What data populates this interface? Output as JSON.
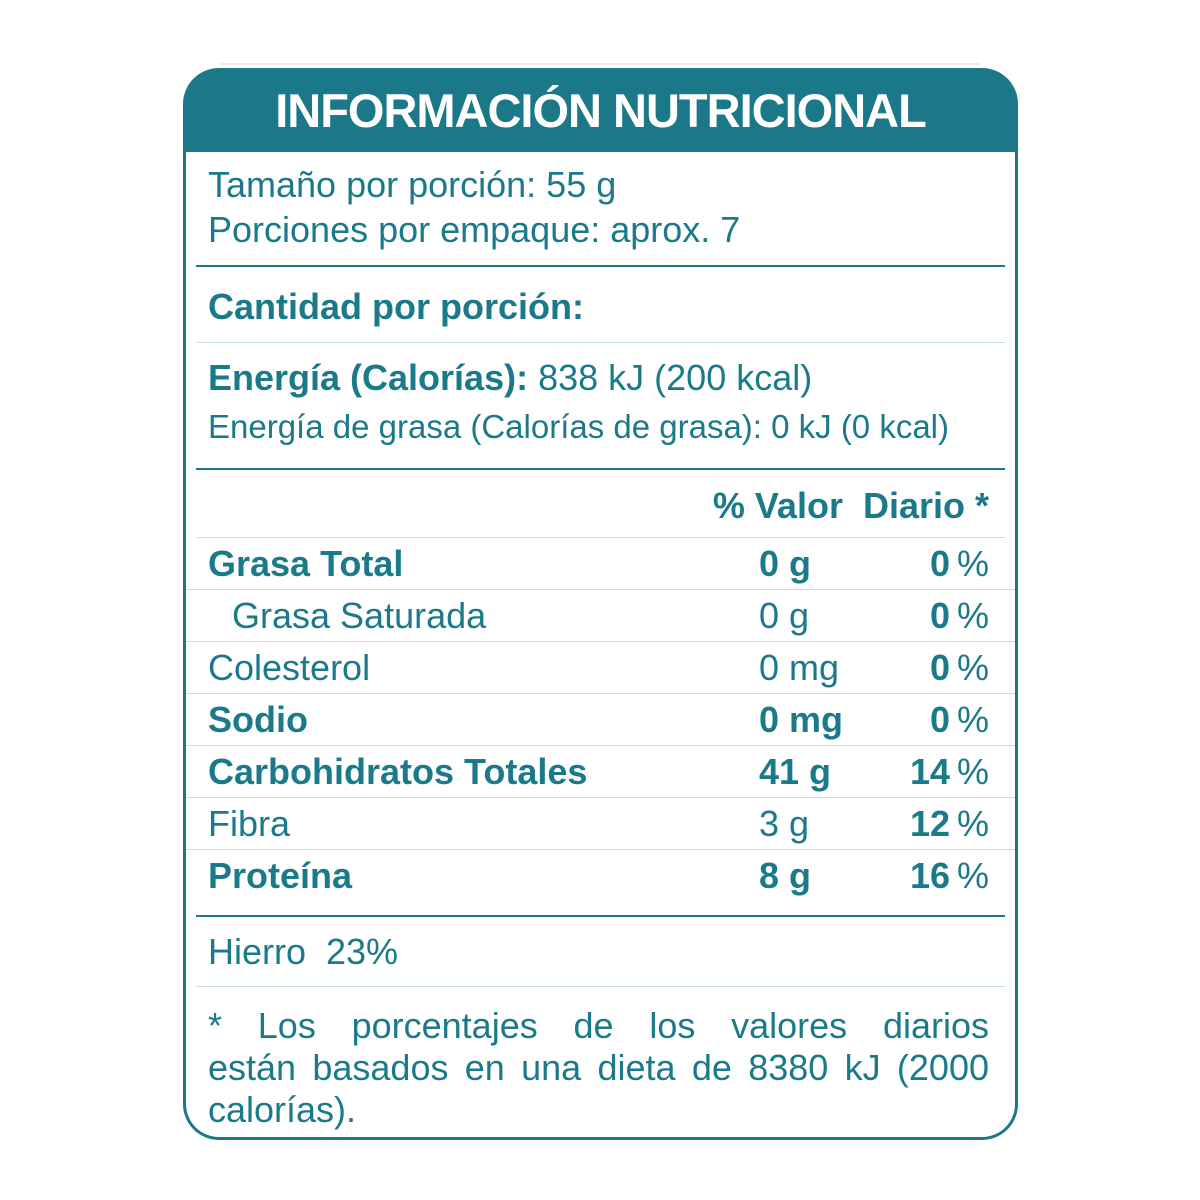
{
  "header": {
    "title": "INFORMACIÓN NUTRICIONAL"
  },
  "serving": {
    "line1": "Tamaño por porción: 55 g",
    "line2": "Porciones por empaque: aprox. 7"
  },
  "amount_section": {
    "heading": "Cantidad por porción:"
  },
  "energy": {
    "label": "Energía (Calorías):",
    "value": " 838 kJ (200 kcal)",
    "fat_line": "Energía de grasa (Calorías de grasa): 0 kJ (0 kcal)"
  },
  "table": {
    "dv_header": "% Valor  Diario *",
    "percent_sign": "%",
    "rows": [
      {
        "label": "Grasa Total",
        "bold": true,
        "indent": false,
        "amount": "0 g",
        "dv": "0"
      },
      {
        "label": "Grasa Saturada",
        "bold": false,
        "indent": true,
        "amount": "0 g",
        "dv": "0"
      },
      {
        "label": "Colesterol",
        "bold": false,
        "indent": false,
        "amount": "0 mg",
        "dv": "0"
      },
      {
        "label": "Sodio",
        "bold": true,
        "indent": false,
        "amount": "0 mg",
        "dv": "0"
      },
      {
        "label": "Carbohidratos Totales",
        "bold": true,
        "indent": false,
        "amount": "41 g",
        "dv": "14"
      },
      {
        "label": "Fibra",
        "bold": false,
        "indent": false,
        "amount": "3 g",
        "dv": "12"
      },
      {
        "label": "Proteína",
        "bold": true,
        "indent": false,
        "amount": "8 g",
        "dv": "16"
      }
    ]
  },
  "minerals": {
    "iron_label": "Hierro",
    "iron_value": "23%"
  },
  "footnote": {
    "lines": [
      "* Los porcentajes de los valores diarios",
      "están basados en una dieta de 8380 kJ (2000",
      "calorías)."
    ]
  },
  "colors": {
    "teal": "#1A7888",
    "text_teal": "#1B7A8A",
    "light_line": "#C8E0E5",
    "header_text": "#FFFFFF"
  }
}
